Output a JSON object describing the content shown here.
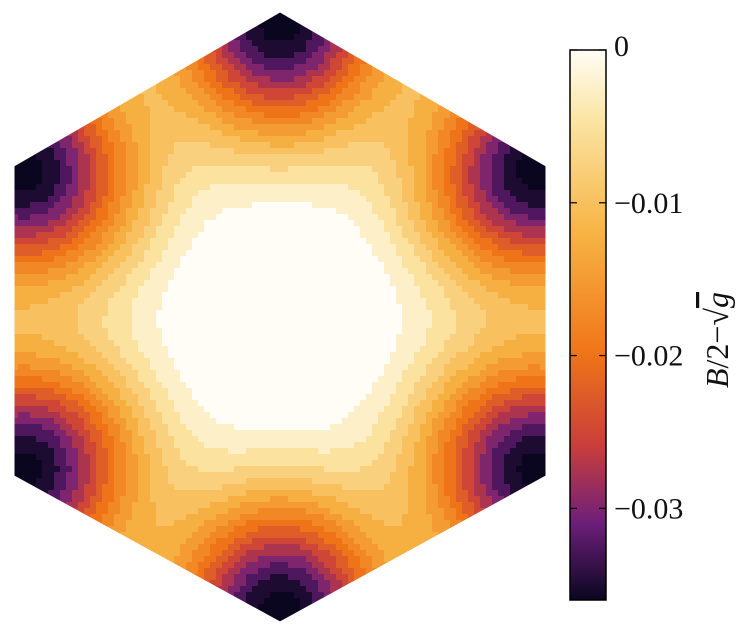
{
  "chart_data": {
    "type": "heatmap",
    "title": "",
    "domain_shape": "hexagon",
    "colormap": "inferno-like",
    "colorbar": {
      "range": [
        -0.036,
        0
      ],
      "ticks": [
        0,
        -0.01,
        -0.02,
        -0.03
      ],
      "tick_labels": [
        "0",
        "−0.01",
        "−0.02",
        "−0.03"
      ],
      "label_parts": {
        "B": "B",
        "slash2": "/2−",
        "sqrt": "√",
        "g": "g"
      },
      "placement": "right"
    },
    "features": {
      "center_plateau": 0.0,
      "minimum_at_vertices": -0.036,
      "contour_step": 0.0025
    },
    "colors": {
      "c0": "#fffdf5",
      "c1": "#fbe6a8",
      "c2": "#f7b445",
      "c3": "#f07518",
      "c4": "#c93e3b",
      "c5": "#6d1f7a",
      "c6": "#0a0620"
    }
  }
}
